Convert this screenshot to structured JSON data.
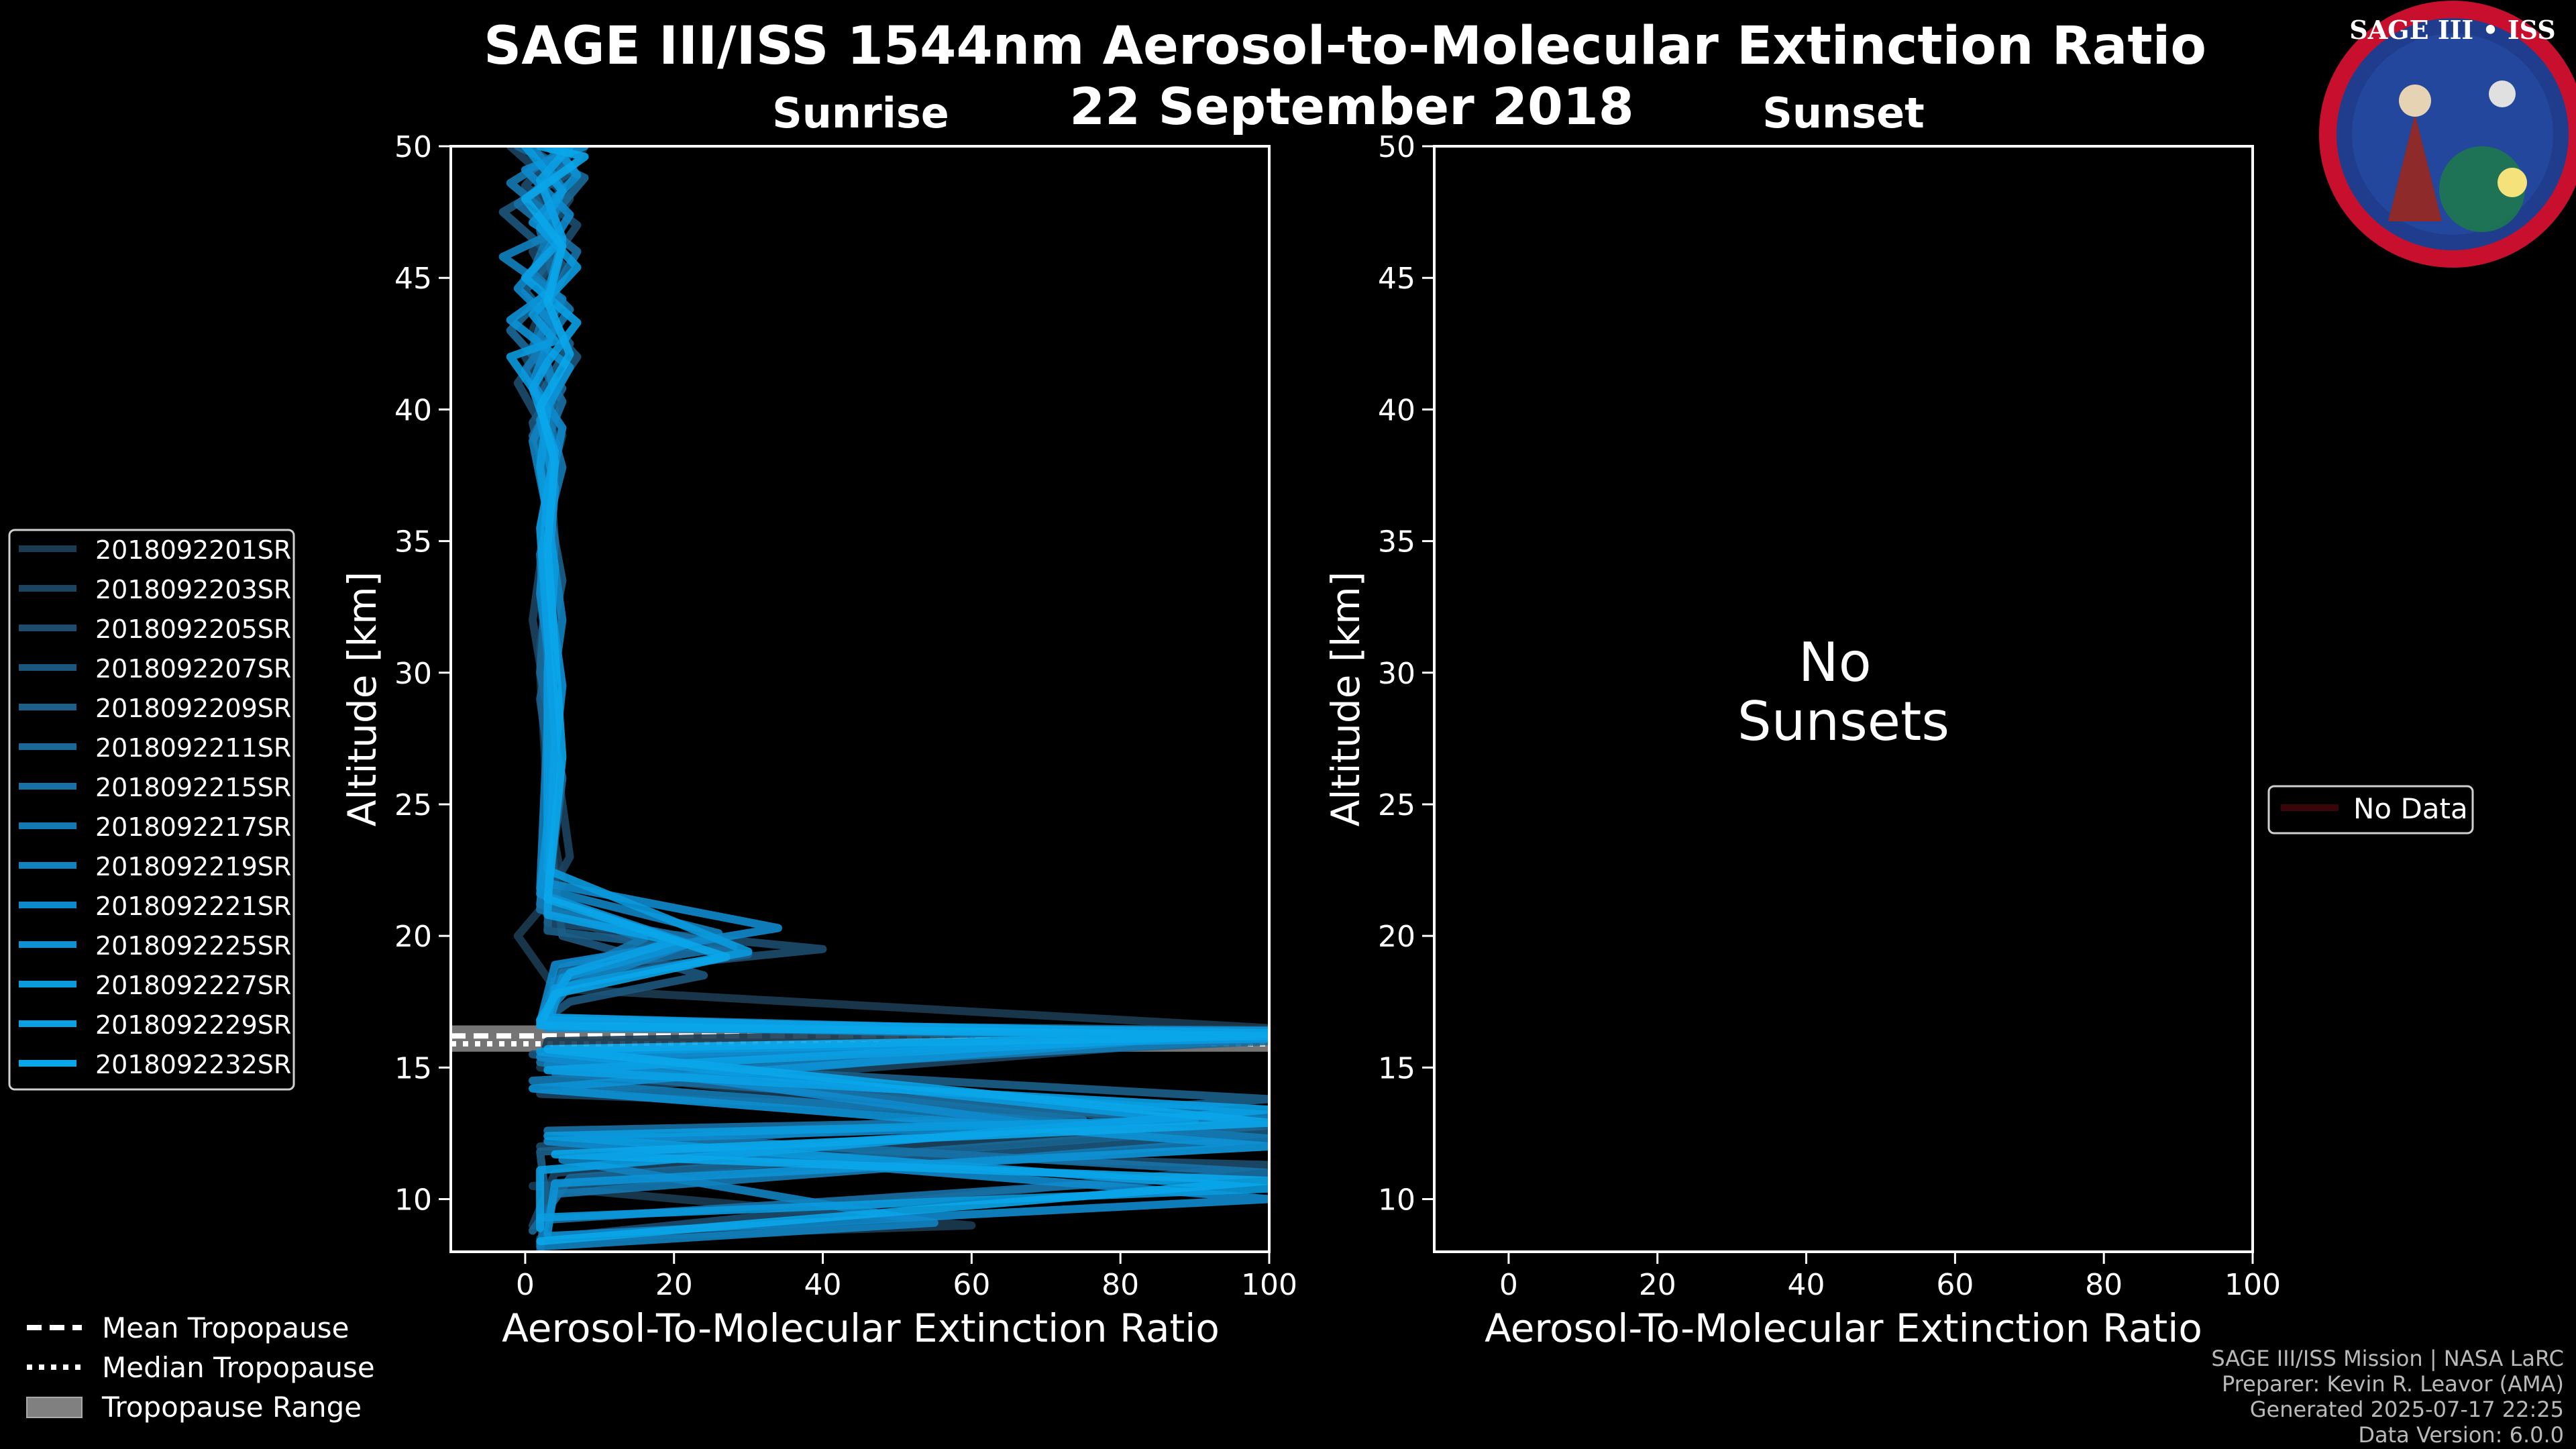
{
  "figure": {
    "title": "SAGE III/ISS 1544nm Aerosol-to-Molecular Extinction Ratio",
    "date": "22 September 2018",
    "logo": {
      "name": "SAGE III • ISS"
    },
    "credits": [
      "SAGE III/ISS Mission | NASA LaRC",
      "Preparer: Kevin R. Leavor (AMA)",
      "Generated 2025-07-17 22:25",
      "Data Version: 6.0.0"
    ],
    "tropopause_legend": {
      "mean": "Mean Tropopause",
      "median": "Median Tropopause",
      "range": "Tropopause Range"
    }
  },
  "chart_data": [
    {
      "type": "line",
      "panel": "sunrise",
      "title": "Sunrise",
      "xlabel": "Aerosol-To-Molecular Extinction Ratio",
      "ylabel": "Altitude [km]",
      "xlim": [
        -10,
        100
      ],
      "ylim": [
        8,
        50
      ],
      "xticks": [
        0,
        20,
        40,
        60,
        80,
        100
      ],
      "yticks": [
        10,
        15,
        20,
        25,
        30,
        35,
        40,
        45,
        50
      ],
      "series_colors": [
        "#1b3b52",
        "#1c4460",
        "#1c4d6e",
        "#1c567c",
        "#1b5f8a",
        "#196898",
        "#1771a6",
        "#1479b3",
        "#1182c0",
        "#0e8acc",
        "#0c92d6",
        "#0a9ade",
        "#0aa0e4",
        "#0aa6ea"
      ],
      "series": [
        {
          "name": "2018092201SR",
          "x": [
            8,
            2,
            4,
            1,
            2,
            5,
            3,
            4,
            2,
            3,
            5,
            -1,
            4,
            100,
            3,
            2,
            100,
            1,
            60,
            3
          ],
          "y": [
            50,
            47,
            45,
            43,
            41,
            39,
            37,
            35,
            30,
            25,
            22,
            20,
            18,
            16.5,
            16,
            15,
            12,
            10.5,
            9,
            8.5
          ]
        },
        {
          "name": "2018092203SR",
          "x": [
            -2,
            6,
            1,
            5,
            0,
            4,
            2,
            3,
            1,
            4,
            6,
            2,
            18,
            4,
            3,
            100,
            2,
            100,
            4,
            1
          ],
          "y": [
            50,
            48,
            46,
            44,
            42,
            40,
            38,
            36,
            32,
            27,
            23,
            21,
            19.5,
            18,
            16.7,
            16.2,
            14,
            13,
            11,
            9
          ]
        },
        {
          "name": "2018092205SR",
          "x": [
            5,
            0,
            7,
            2,
            4,
            -1,
            3,
            4,
            2,
            3,
            4,
            3,
            40,
            5,
            2,
            100,
            3,
            80,
            2,
            100,
            2
          ],
          "y": [
            50,
            48.5,
            47,
            45,
            43,
            41,
            39,
            35,
            31,
            26,
            22,
            20.5,
            19.5,
            18.5,
            16.8,
            16.3,
            15,
            13.5,
            12,
            11.3,
            8.5
          ]
        },
        {
          "name": "2018092207SR",
          "x": [
            0,
            6,
            -3,
            5,
            2,
            7,
            1,
            3,
            2,
            4,
            3,
            5,
            24,
            6,
            3,
            100,
            1,
            100,
            3,
            2
          ],
          "y": [
            50,
            49,
            47.5,
            45.5,
            43.5,
            42,
            39.5,
            37,
            33,
            28,
            24,
            20,
            18.5,
            17.5,
            16.9,
            16.1,
            15.5,
            12.5,
            10.5,
            8
          ]
        },
        {
          "name": "2018092209SR",
          "x": [
            7,
            1,
            5,
            0,
            6,
            2,
            4,
            3,
            5,
            2,
            4,
            3,
            30,
            4,
            2,
            100,
            3,
            100,
            2,
            3
          ],
          "y": [
            50,
            48.2,
            46.3,
            44.5,
            42.5,
            40.5,
            38.5,
            36.5,
            33.5,
            29,
            25,
            20.2,
            19.3,
            18.2,
            16.7,
            16.4,
            15.3,
            13.8,
            11.8,
            9.5
          ]
        },
        {
          "name": "2018092211SR",
          "x": [
            -1,
            8,
            2,
            4,
            -2,
            5,
            1,
            4,
            3,
            2,
            5,
            3,
            20,
            5,
            2,
            100,
            4,
            100,
            6,
            1
          ],
          "y": [
            50,
            48.8,
            46.8,
            44.8,
            43,
            40.8,
            39,
            37.5,
            34,
            30,
            26,
            21.5,
            19.8,
            18.8,
            16.8,
            16,
            14.8,
            12.8,
            10.8,
            8.8
          ]
        },
        {
          "name": "2018092215SR",
          "x": [
            3,
            6,
            -1,
            7,
            3,
            1,
            5,
            2,
            4,
            3,
            4,
            2,
            28,
            5,
            3,
            100,
            2,
            75,
            3,
            100,
            2
          ],
          "y": [
            50,
            49.3,
            47.8,
            46,
            44,
            42.3,
            40.3,
            38.2,
            35,
            31,
            27,
            21,
            19.6,
            18.6,
            16.9,
            16.2,
            15.2,
            13,
            12.6,
            11,
            9.2
          ]
        },
        {
          "name": "2018092217SR",
          "x": [
            6,
            -2,
            4,
            1,
            6,
            0,
            3,
            5,
            2,
            3,
            4,
            2,
            16,
            4,
            3,
            100,
            1,
            100,
            4,
            2
          ],
          "y": [
            50,
            48.6,
            47.2,
            45.2,
            43.8,
            41.5,
            39.8,
            37.8,
            34.5,
            30.5,
            26.5,
            21.2,
            19.9,
            18.3,
            16.6,
            16.1,
            14.5,
            12.3,
            10.2,
            8.3
          ]
        },
        {
          "name": "2018092219SR",
          "x": [
            1,
            5,
            3,
            -3,
            5,
            2,
            4,
            1,
            3,
            5,
            3,
            2,
            26,
            6,
            2,
            100,
            3,
            100,
            5,
            55,
            2
          ],
          "y": [
            50,
            48.4,
            46.6,
            45.8,
            44.2,
            42.8,
            40.6,
            38.8,
            36,
            32,
            28,
            21.8,
            20.1,
            18.1,
            16.8,
            16.3,
            15.1,
            13.2,
            11.5,
            9.1,
            8.2
          ]
        },
        {
          "name": "2018092221SR",
          "x": [
            8,
            0,
            6,
            2,
            -1,
            4,
            1,
            5,
            3,
            2,
            4,
            3,
            34,
            4,
            2,
            100,
            2,
            70,
            3,
            100,
            3
          ],
          "y": [
            50,
            49.1,
            47.4,
            45.6,
            44.6,
            43.2,
            41,
            39.3,
            36.5,
            33,
            29,
            22,
            20.3,
            18.9,
            16.7,
            16.2,
            15.4,
            12.8,
            12.2,
            10,
            8.6
          ]
        },
        {
          "name": "2018092225SR",
          "x": [
            4,
            7,
            1,
            5,
            3,
            -2,
            6,
            2,
            4,
            3,
            5,
            2,
            22,
            5,
            3,
            100,
            1,
            100,
            4,
            3
          ],
          "y": [
            50,
            48.9,
            47.1,
            46.4,
            44.4,
            43.4,
            41.6,
            39.6,
            37,
            33.5,
            29.5,
            21.6,
            19.7,
            18.4,
            16.5,
            16.4,
            14.2,
            12,
            10.6,
            8.7
          ]
        },
        {
          "name": "2018092227SR",
          "x": [
            0,
            5,
            2,
            7,
            1,
            4,
            -2,
            3,
            2,
            4,
            3,
            3,
            30,
            4,
            3,
            100,
            2,
            90,
            3,
            100,
            2
          ],
          "y": [
            50,
            48.3,
            46.9,
            45.4,
            43.6,
            42.6,
            42,
            40,
            37.8,
            34,
            30,
            22.5,
            19.4,
            18,
            16.9,
            16.1,
            15.6,
            13,
            12.4,
            10.4,
            9.3
          ]
        },
        {
          "name": "2018092229SR",
          "x": [
            6,
            2,
            5,
            0,
            7,
            3,
            1,
            4,
            2,
            3,
            4,
            3,
            20,
            6,
            2,
            100,
            3,
            100,
            2,
            2
          ],
          "y": [
            50,
            48.7,
            46.5,
            45,
            43.3,
            41.8,
            40.8,
            38.4,
            35.5,
            31.5,
            27.5,
            20.8,
            19.8,
            18.6,
            16.8,
            16.3,
            14.9,
            13.4,
            11.1,
            8.9
          ]
        },
        {
          "name": "2018092232SR",
          "x": [
            2,
            8,
            0,
            5,
            3,
            6,
            2,
            4,
            3,
            4,
            5,
            3,
            27,
            4,
            2,
            100,
            3,
            100,
            4,
            100,
            2
          ],
          "y": [
            50,
            49.6,
            48,
            46.2,
            44.1,
            42.1,
            40.1,
            38,
            34.8,
            30.8,
            26.8,
            21.4,
            19.2,
            17.8,
            16.6,
            16.2,
            15.7,
            12.9,
            11.7,
            10.7,
            8.4
          ]
        }
      ],
      "tropopause": {
        "mean": 16.2,
        "median": 15.9,
        "range": [
          15.6,
          16.6
        ]
      }
    },
    {
      "type": "line",
      "panel": "sunset",
      "title": "Sunset",
      "xlabel": "Aerosol-To-Molecular Extinction Ratio",
      "ylabel": "Altitude [km]",
      "xlim": [
        -10,
        100
      ],
      "ylim": [
        8,
        50
      ],
      "xticks": [
        0,
        20,
        40,
        60,
        80,
        100
      ],
      "yticks": [
        10,
        15,
        20,
        25,
        30,
        35,
        40,
        45,
        50
      ],
      "no_data_text": "No Sunsets",
      "legend": [
        "No Data"
      ],
      "series": []
    }
  ]
}
